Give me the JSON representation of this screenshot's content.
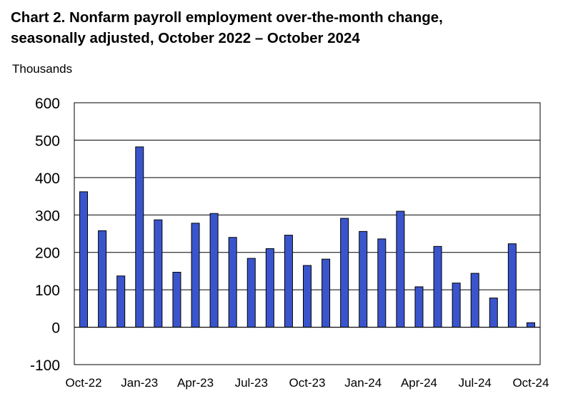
{
  "chart_data": {
    "type": "bar",
    "title_line1": "Chart 2. Nonfarm payroll employment over-the-month change,",
    "title_line2": "seasonally adjusted, October 2022 – October 2024",
    "ylabel": "Thousands",
    "xlabel": "",
    "ylim": [
      -100,
      600
    ],
    "yticks": [
      600,
      500,
      400,
      300,
      200,
      100,
      0,
      -100
    ],
    "categories": [
      "Oct-22",
      "Nov-22",
      "Dec-22",
      "Jan-23",
      "Feb-23",
      "Mar-23",
      "Apr-23",
      "May-23",
      "Jun-23",
      "Jul-23",
      "Aug-23",
      "Sep-23",
      "Oct-23",
      "Nov-23",
      "Dec-23",
      "Jan-24",
      "Feb-24",
      "Mar-24",
      "Apr-24",
      "May-24",
      "Jun-24",
      "Jul-24",
      "Aug-24",
      "Sep-24",
      "Oct-24"
    ],
    "xtick_labels": [
      "Oct-22",
      "Jan-23",
      "Apr-23",
      "Jul-23",
      "Oct-23",
      "Jan-24",
      "Apr-24",
      "Jul-24",
      "Oct-24"
    ],
    "values": [
      362,
      258,
      137,
      482,
      287,
      147,
      278,
      304,
      240,
      184,
      210,
      246,
      165,
      182,
      291,
      256,
      236,
      310,
      108,
      216,
      118,
      144,
      78,
      223,
      12
    ],
    "bar_color": "#3a55cc",
    "grid": true,
    "legend": "none"
  }
}
